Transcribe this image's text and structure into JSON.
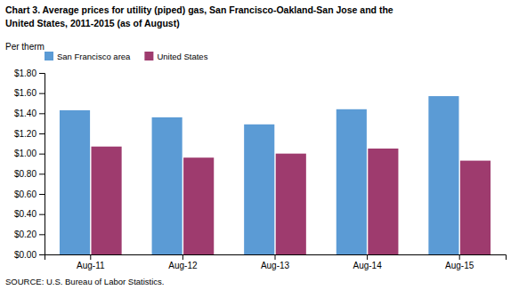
{
  "chart_data": {
    "type": "bar",
    "title": "Chart 3. Average prices for utility (piped) gas, San Francisco-Oakland-San Jose and the\nUnited States, 2011-2015  (as of August)",
    "ylabel": "Per therm",
    "annotations": [
      "SOURCE: U.S. Bureau of Labor Statistics."
    ],
    "categories": [
      "Aug-11",
      "Aug-12",
      "Aug-13",
      "Aug-14",
      "Aug-15"
    ],
    "series": [
      {
        "name": "San Francisco area",
        "color": "#5B9BD5",
        "values": [
          1.43,
          1.36,
          1.29,
          1.44,
          1.57
        ]
      },
      {
        "name": "United States",
        "color": "#9E3B6E",
        "values": [
          1.07,
          0.96,
          1.0,
          1.05,
          0.93
        ]
      }
    ],
    "ylim": [
      0.0,
      1.8
    ],
    "yticks": [
      {
        "value": 0.0,
        "label": "$0.00"
      },
      {
        "value": 0.2,
        "label": "$0.20"
      },
      {
        "value": 0.4,
        "label": "$0.40"
      },
      {
        "value": 0.6,
        "label": "$0.60"
      },
      {
        "value": 0.8,
        "label": "$0.80"
      },
      {
        "value": 1.0,
        "label": "$1.00"
      },
      {
        "value": 1.2,
        "label": "$1.20"
      },
      {
        "value": 1.4,
        "label": "$1.40"
      },
      {
        "value": 1.6,
        "label": "$1.60"
      },
      {
        "value": 1.8,
        "label": "$1.80"
      }
    ],
    "grid": false,
    "legend": "top-left"
  }
}
